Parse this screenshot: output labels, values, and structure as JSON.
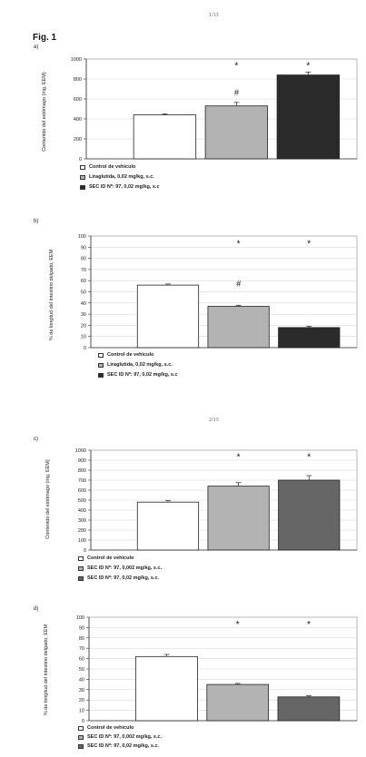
{
  "page_numbers": [
    "1/13",
    "2/13"
  ],
  "figure_label": "Fig. 1",
  "colors": {
    "white_bar": "#ffffff",
    "light_bar": "#b3b3b3",
    "medium_bar": "#666666",
    "dark_bar": "#2b2b2b",
    "axis": "#333333",
    "grid": "#d0d0d0"
  },
  "chart_data": [
    {
      "panel": "a)",
      "type": "bar",
      "ylabel": "Contenido del estómago (mg, EEM)",
      "ylim": [
        0,
        1000
      ],
      "yticks": [
        "0",
        "200",
        "400",
        "600",
        "800",
        "1000"
      ],
      "categories": [
        "Control de vehículo",
        "Liraglutida, 0,02 mg/kg, s.c.",
        "SEC ID Nº: 97, 0,02 mg/kg, s.c"
      ],
      "values": [
        440,
        530,
        840
      ],
      "errors": [
        12,
        35,
        30
      ],
      "bar_colors": [
        "#ffffff",
        "#b3b3b3",
        "#2b2b2b"
      ],
      "annotations": [
        {
          "bar": 1,
          "marks": [
            "*",
            "#"
          ]
        },
        {
          "bar": 2,
          "marks": [
            "*"
          ]
        }
      ],
      "legend": [
        "Control de vehículo",
        "Liraglutida, 0,02 mg/kg, s.c.",
        "SEC ID Nº: 97, 0,02 mg/kg, s.c"
      ]
    },
    {
      "panel": "b)",
      "type": "bar",
      "ylabel": "% de longitud del intestino delgado, EEM",
      "ylim": [
        0,
        100
      ],
      "yticks": [
        "0",
        "10",
        "20",
        "30",
        "40",
        "50",
        "60",
        "70",
        "80",
        "90",
        "100"
      ],
      "categories": [
        "Control de vehículo",
        "Liraglutida, 0,02 mg/kg, s.c.",
        "SEC ID Nº: 97, 0,02 mg/kg, s.c"
      ],
      "values": [
        56,
        37,
        18
      ],
      "errors": [
        1,
        1,
        1
      ],
      "bar_colors": [
        "#ffffff",
        "#b3b3b3",
        "#2b2b2b"
      ],
      "annotations": [
        {
          "bar": 1,
          "marks": [
            "*",
            "#"
          ]
        },
        {
          "bar": 2,
          "marks": [
            "*"
          ]
        }
      ],
      "legend": [
        "Control de vehículo",
        "Liraglutida, 0,02 mg/kg, s.c.",
        "SEC ID Nº: 97, 0,02 mg/kg, s.c"
      ]
    },
    {
      "panel": "c)",
      "type": "bar",
      "ylabel": "Contenido del estómago (mg, EEM)",
      "ylim": [
        0,
        1000
      ],
      "yticks": [
        "0",
        "100",
        "200",
        "300",
        "400",
        "500",
        "600",
        "700",
        "800",
        "900",
        "1000"
      ],
      "categories": [
        "Control de vehículo",
        "SEC ID Nº: 97, 0,002 mg/kg, s.c.",
        "SEC ID Nº: 97, 0,02 mg/kg, s.c."
      ],
      "values": [
        480,
        640,
        700
      ],
      "errors": [
        15,
        35,
        45
      ],
      "bar_colors": [
        "#ffffff",
        "#b3b3b3",
        "#666666"
      ],
      "annotations": [
        {
          "bar": 1,
          "marks": [
            "*"
          ]
        },
        {
          "bar": 2,
          "marks": [
            "*"
          ]
        }
      ],
      "legend": [
        "Control de vehículo",
        "SEC ID Nº: 97, 0,002 mg/kg, s.c.",
        "SEC ID Nº: 97, 0,02 mg/kg, s.c."
      ]
    },
    {
      "panel": "d)",
      "type": "bar",
      "ylabel": "% de longitud del intestino delgado, EEM",
      "ylim": [
        0,
        100
      ],
      "yticks": [
        "0",
        "10",
        "20",
        "30",
        "40",
        "50",
        "60",
        "70",
        "80",
        "90",
        "100"
      ],
      "categories": [
        "Control de vehículo",
        "SEC ID Nº: 97, 0,002 mg/kg, s.c.",
        "SEC ID Nº: 97, 0,02 mg/kg, s.c."
      ],
      "values": [
        62,
        35,
        23
      ],
      "errors": [
        2,
        1,
        1
      ],
      "bar_colors": [
        "#ffffff",
        "#b3b3b3",
        "#666666"
      ],
      "annotations": [
        {
          "bar": 1,
          "marks": [
            "*"
          ]
        },
        {
          "bar": 2,
          "marks": [
            "*"
          ]
        }
      ],
      "legend": [
        "Control de vehículo",
        "SEC ID Nº: 97, 0,002 mg/kg, s.c.",
        "SEC ID Nº: 97, 0,02 mg/kg, s.c."
      ]
    }
  ]
}
